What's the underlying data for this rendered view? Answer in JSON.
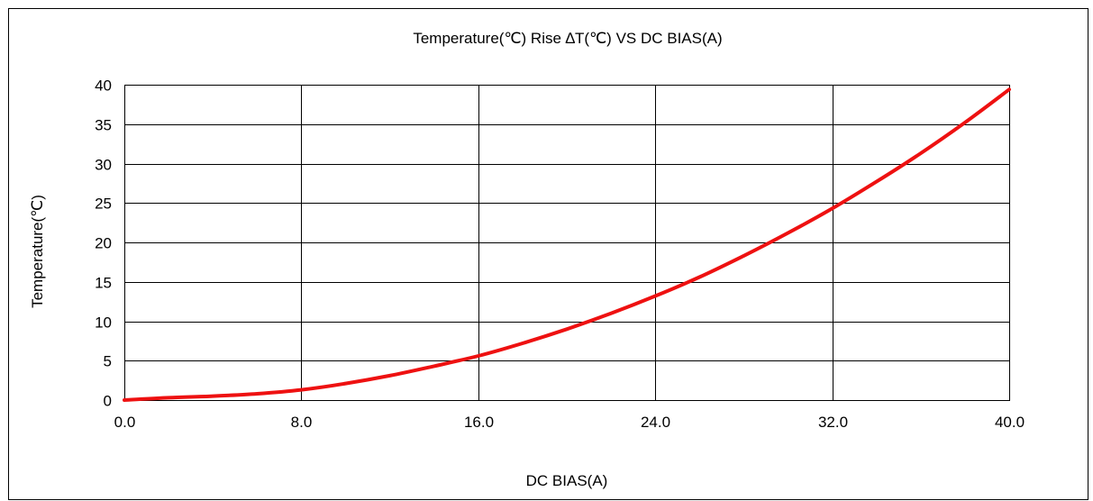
{
  "chart_data": {
    "type": "line",
    "title": "Temperature(℃) Rise ∆T(℃)  VS DC BIAS(A)",
    "xlabel": "DC BIAS(A)",
    "ylabel": "Temperature(℃)",
    "xlim": [
      0,
      40
    ],
    "ylim": [
      0,
      40
    ],
    "x_ticks": [
      0,
      8,
      16,
      24,
      32,
      40
    ],
    "x_tick_labels": [
      "0.0",
      "8.0",
      "16.0",
      "24.0",
      "32.0",
      "40.0"
    ],
    "y_ticks": [
      0,
      5,
      10,
      15,
      20,
      25,
      30,
      35,
      40
    ],
    "y_tick_labels": [
      "0",
      "5",
      "10",
      "15",
      "20",
      "25",
      "30",
      "35",
      "40"
    ],
    "grid": true,
    "legend": "none",
    "colors": {
      "series": "#ee1111",
      "grid": "#000000",
      "border": "#000000"
    },
    "series": [
      {
        "x": [
          0,
          2,
          4,
          6,
          8,
          10,
          12,
          14,
          16,
          18,
          20,
          22,
          24,
          26,
          28,
          30,
          32,
          34,
          36,
          38,
          40
        ],
        "y": [
          0,
          0.3,
          0.5,
          0.8,
          1.3,
          2.1,
          3.1,
          4.3,
          5.6,
          7.2,
          9.0,
          11.0,
          13.2,
          15.6,
          18.3,
          21.2,
          24.3,
          27.7,
          31.3,
          35.2,
          39.4
        ]
      }
    ]
  }
}
